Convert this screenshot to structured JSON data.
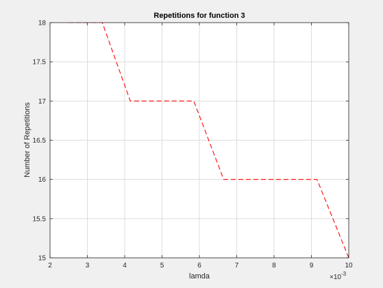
{
  "chart_data": {
    "type": "line",
    "title": "Repetitions for function 3",
    "xlabel": "lamda",
    "ylabel": "Number of Repetitions",
    "x_exponent_base": "×10",
    "x_exponent_power": "-3",
    "xlim": [
      2,
      10
    ],
    "ylim": [
      15,
      18
    ],
    "grid": true,
    "xticks": [
      2,
      3,
      4,
      5,
      6,
      7,
      8,
      9,
      10
    ],
    "yticks": [
      15,
      15.5,
      16,
      16.5,
      17,
      17.5,
      18
    ],
    "xtick_labels": [
      "2",
      "3",
      "4",
      "5",
      "6",
      "7",
      "8",
      "9",
      "10"
    ],
    "ytick_labels": [
      "15",
      "15.5",
      "16",
      "16.5",
      "17",
      "17.5",
      "18"
    ],
    "series": [
      {
        "color": "#ff0000",
        "style": "dashed",
        "x": [
          2.5,
          3.4,
          4.15,
          5.85,
          6.65,
          9.15,
          10
        ],
        "y": [
          18,
          18,
          17,
          17,
          16,
          16,
          15
        ]
      }
    ]
  }
}
